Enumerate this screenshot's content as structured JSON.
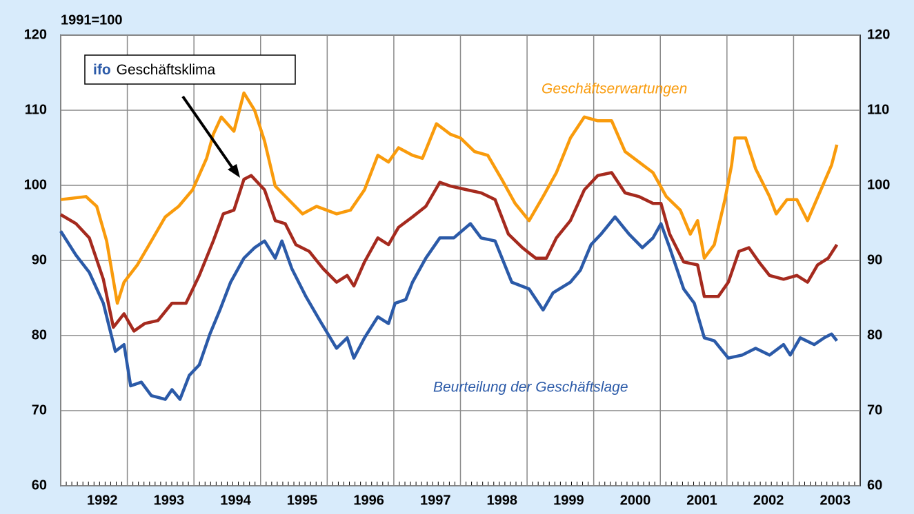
{
  "chart_data": {
    "type": "line",
    "title": "1991=100",
    "xlim": [
      1992,
      2004
    ],
    "xticks": [
      {
        "value": 1992,
        "label": "1992"
      },
      {
        "value": 1993,
        "label": "1993"
      },
      {
        "value": 1994,
        "label": "1994"
      },
      {
        "value": 1995,
        "label": "1995"
      },
      {
        "value": 1996,
        "label": "1996"
      },
      {
        "value": 1997,
        "label": "1997"
      },
      {
        "value": 1998,
        "label": "1998"
      },
      {
        "value": 1999,
        "label": "1999"
      },
      {
        "value": 2000,
        "label": "2000"
      },
      {
        "value": 2001,
        "label": "2001"
      },
      {
        "value": 2002,
        "label": "2002"
      },
      {
        "value": 2003,
        "label": "2003"
      }
    ],
    "ylim": [
      60,
      120
    ],
    "yticks": [
      60,
      70,
      80,
      90,
      100,
      110,
      120
    ],
    "y2lim": [
      60,
      120
    ],
    "y2ticks": [
      60,
      70,
      80,
      90,
      100,
      110,
      120
    ],
    "grid": true,
    "annotations": {
      "box_brand": "ifo"
    },
    "series": [
      {
        "name": "Geschäftserwartungen",
        "color": "#f99b0c",
        "x": [
          1992.0,
          1992.38,
          1992.54,
          1992.69,
          1992.85,
          1992.95,
          1993.15,
          1993.36,
          1993.57,
          1993.77,
          1993.98,
          1994.19,
          1994.29,
          1994.41,
          1994.6,
          1994.75,
          1994.91,
          1995.06,
          1995.22,
          1995.42,
          1995.63,
          1995.84,
          1996.14,
          1996.35,
          1996.56,
          1996.76,
          1996.92,
          1997.07,
          1997.28,
          1997.43,
          1997.64,
          1997.85,
          1998.0,
          1998.21,
          1998.41,
          1998.62,
          1998.82,
          1999.03,
          1999.24,
          1999.44,
          1999.65,
          1999.86,
          2000.06,
          2000.27,
          2000.47,
          2000.68,
          2000.89,
          2001.09,
          2001.3,
          2001.45,
          2001.56,
          2001.66,
          2001.81,
          2001.97,
          2002.07,
          2002.12,
          2002.28,
          2002.43,
          2002.64,
          2002.74,
          2002.9,
          2003.05,
          2003.21,
          2003.41,
          2003.57,
          2003.65
        ],
        "values": [
          98.1,
          98.5,
          97.2,
          92.6,
          84.3,
          87.1,
          89.4,
          92.6,
          95.8,
          97.2,
          99.4,
          103.6,
          106.8,
          109.1,
          107.2,
          112.3,
          110,
          105.9,
          99.9,
          98.1,
          96.2,
          97.2,
          96.2,
          96.7,
          99.4,
          104,
          103.1,
          105,
          104,
          103.6,
          108.2,
          106.8,
          106.3,
          104.5,
          104,
          100.8,
          97.6,
          95.3,
          98.5,
          101.7,
          106.3,
          109.1,
          108.6,
          108.6,
          104.5,
          103.1,
          101.7,
          98.5,
          96.7,
          93.5,
          95.3,
          90.3,
          92.1,
          98.1,
          102.7,
          106.3,
          106.3,
          102.2,
          98.5,
          96.2,
          98.1,
          98.1,
          95.3,
          99.4,
          102.7,
          105.4
        ]
      },
      {
        "name": "Geschäftsklima",
        "color": "#a52a1e",
        "x": [
          1992.0,
          1992.23,
          1992.43,
          1992.64,
          1992.79,
          1992.95,
          1993.1,
          1993.26,
          1993.46,
          1993.67,
          1993.88,
          1994.08,
          1994.29,
          1994.44,
          1994.6,
          1994.75,
          1994.86,
          1995.06,
          1995.22,
          1995.37,
          1995.53,
          1995.73,
          1995.94,
          1996.14,
          1996.3,
          1996.4,
          1996.56,
          1996.76,
          1996.92,
          1997.07,
          1997.28,
          1997.48,
          1997.69,
          1997.85,
          1998.1,
          1998.31,
          1998.52,
          1998.72,
          1998.93,
          1999.13,
          1999.29,
          1999.44,
          1999.65,
          1999.86,
          2000.06,
          2000.27,
          2000.47,
          2000.68,
          2000.89,
          2001.01,
          2001.14,
          2001.35,
          2001.56,
          2001.66,
          2001.87,
          2002.02,
          2002.18,
          2002.33,
          2002.48,
          2002.64,
          2002.85,
          2003.05,
          2003.21,
          2003.36,
          2003.52,
          2003.65
        ],
        "values": [
          96.1,
          94.9,
          93,
          87.5,
          81.1,
          82.9,
          80.6,
          81.6,
          82,
          84.3,
          84.3,
          88,
          92.6,
          96.2,
          96.7,
          100.8,
          101.3,
          99.4,
          95.3,
          94.9,
          92.1,
          91.2,
          88.9,
          87.1,
          88,
          86.6,
          89.8,
          93,
          92.1,
          94.4,
          95.8,
          97.2,
          100.4,
          99.9,
          99.4,
          99,
          98.1,
          93.5,
          91.7,
          90.3,
          90.3,
          93,
          95.3,
          99.4,
          101.3,
          101.7,
          99,
          98.5,
          97.6,
          97.6,
          93.5,
          89.8,
          89.4,
          85.2,
          85.2,
          87.1,
          91.2,
          91.7,
          89.8,
          88,
          87.5,
          88,
          87.1,
          89.4,
          90.3,
          92.1
        ]
      },
      {
        "name": "Beurteilung der Geschäftslage",
        "color": "#2b5aa8",
        "x": [
          1992.0,
          1992.23,
          1992.43,
          1992.64,
          1992.82,
          1992.95,
          1993.05,
          1993.21,
          1993.36,
          1993.57,
          1993.67,
          1993.79,
          1993.93,
          1994.08,
          1994.24,
          1994.39,
          1994.55,
          1994.75,
          1994.91,
          1995.06,
          1995.22,
          1995.32,
          1995.47,
          1995.68,
          1995.89,
          1996.14,
          1996.3,
          1996.4,
          1996.56,
          1996.76,
          1996.92,
          1997.02,
          1997.18,
          1997.28,
          1997.48,
          1997.69,
          1997.9,
          1998.15,
          1998.31,
          1998.52,
          1998.77,
          1999.03,
          1999.24,
          1999.39,
          1999.65,
          1999.8,
          1999.96,
          2000.11,
          2000.32,
          2000.53,
          2000.73,
          2000.89,
          2001.01,
          2001.14,
          2001.35,
          2001.51,
          2001.66,
          2001.81,
          2002.02,
          2002.23,
          2002.43,
          2002.64,
          2002.85,
          2002.95,
          2003.1,
          2003.31,
          2003.46,
          2003.57,
          2003.65
        ],
        "values": [
          93.9,
          90.7,
          88.4,
          84.3,
          77.9,
          78.8,
          73.3,
          73.8,
          72,
          71.5,
          72.8,
          71.5,
          74.7,
          76.1,
          80.2,
          83.4,
          87.1,
          90.3,
          91.7,
          92.6,
          90.3,
          92.6,
          88.9,
          85.2,
          82,
          78.3,
          79.7,
          77,
          79.7,
          82.5,
          81.6,
          84.3,
          84.8,
          87.1,
          90.3,
          93,
          93,
          94.9,
          93,
          92.6,
          87.1,
          86.2,
          83.4,
          85.7,
          87.1,
          88.7,
          92.1,
          93.5,
          95.8,
          93.5,
          91.7,
          93,
          94.9,
          91.7,
          86.2,
          84.3,
          79.7,
          79.3,
          77,
          77.4,
          78.3,
          77.4,
          78.8,
          77.4,
          79.7,
          78.8,
          79.7,
          80.2,
          79.3
        ]
      }
    ]
  }
}
